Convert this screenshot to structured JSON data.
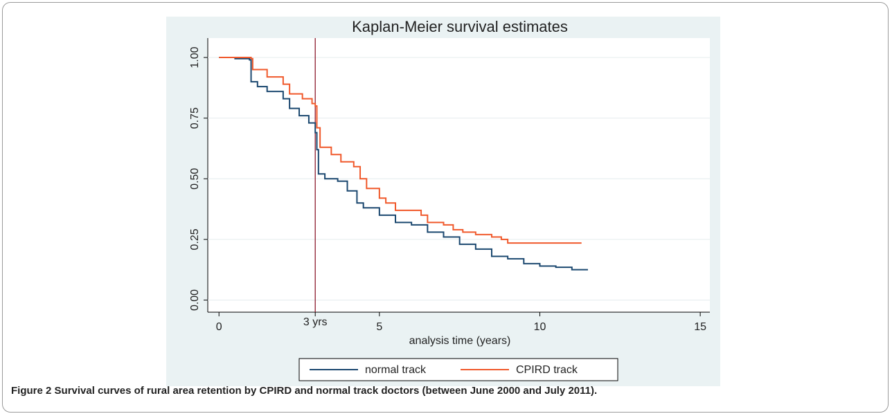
{
  "chart_data": {
    "type": "step",
    "title": "Kaplan-Meier survival estimates",
    "x_label": "analysis time (years)",
    "xlim": [
      -0.35,
      15.3
    ],
    "ylim": [
      -0.05,
      1.08
    ],
    "xticks": [
      0,
      5,
      10,
      15
    ],
    "yticks": [
      {
        "value": 0,
        "label": "0.00"
      },
      0.25,
      {
        "value": 0.5,
        "label": "0.50"
      },
      0.75,
      {
        "value": 1,
        "label": "1.00"
      }
    ],
    "grid": true,
    "reference_line": {
      "x": 3,
      "label": "3 yrs",
      "color": "#8b1a2b"
    },
    "legend": "bottom",
    "series": [
      {
        "name": "normal track",
        "color": "#1a476f",
        "x": [
          0,
          0.5,
          0.95,
          1.0,
          1.2,
          1.5,
          2,
          2.2,
          2.5,
          2.8,
          3.0,
          3.05,
          3.1,
          3.3,
          3.7,
          4.0,
          4.3,
          4.5,
          5,
          5.5,
          6,
          6.5,
          7,
          7.5,
          8,
          8.5,
          9,
          9.5,
          10,
          10.5,
          11,
          11.5
        ],
        "values": [
          1.0,
          0.995,
          0.99,
          0.9,
          0.88,
          0.86,
          0.83,
          0.79,
          0.76,
          0.73,
          0.69,
          0.62,
          0.52,
          0.5,
          0.49,
          0.45,
          0.4,
          0.38,
          0.35,
          0.32,
          0.31,
          0.28,
          0.26,
          0.23,
          0.21,
          0.18,
          0.17,
          0.15,
          0.14,
          0.135,
          0.125,
          0.125
        ]
      },
      {
        "name": "CPIRD track",
        "color": "#f0582a",
        "x": [
          0,
          1.0,
          1.05,
          1.5,
          2,
          2.2,
          2.6,
          2.9,
          3.0,
          3.05,
          3.15,
          3.5,
          3.8,
          4.2,
          4.4,
          4.6,
          5,
          5.2,
          5.5,
          6,
          6.3,
          6.5,
          7,
          7.3,
          7.6,
          8,
          8.5,
          8.8,
          9,
          11.3
        ],
        "values": [
          1.0,
          0.995,
          0.95,
          0.92,
          0.89,
          0.85,
          0.83,
          0.81,
          0.8,
          0.71,
          0.63,
          0.6,
          0.57,
          0.55,
          0.5,
          0.46,
          0.42,
          0.4,
          0.37,
          0.37,
          0.35,
          0.32,
          0.31,
          0.29,
          0.28,
          0.27,
          0.26,
          0.25,
          0.235,
          0.235
        ]
      }
    ]
  },
  "caption": {
    "label": "Figure 2",
    "text": "Survival curves of rural area retention by CPIRD and normal track doctors (between June 2000 and July 2011)."
  }
}
